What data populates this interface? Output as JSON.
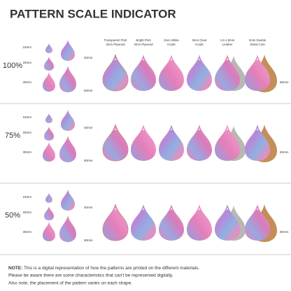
{
  "title": "PATTERN SCALE INDICATOR",
  "materials": [
    "Transparent Print 3mm Plywood",
    "Bright Print 3mm Plywood",
    "3mm White Acrylic",
    "3mm Clear Acrylic",
    "1.6-1.8mm Leather",
    "2mm Double Sided Cork"
  ],
  "rows": [
    {
      "scale": "100%",
      "sizes": [
        "15mm",
        "20mm",
        "30mm",
        "40mm",
        "50mm",
        "60mm"
      ]
    },
    {
      "scale": "75%",
      "sizes": [
        "15mm",
        "20mm",
        "30mm",
        "40mm",
        "50mm",
        "60mm"
      ]
    },
    {
      "scale": "50%",
      "sizes": [
        "15mm",
        "20mm",
        "30mm",
        "40mm",
        "50mm",
        "60mm"
      ]
    }
  ],
  "note": {
    "label": "NOTE:",
    "lines": [
      "This is a digital representation of how the patterns are printed on the different materials.",
      "Please be aware there are some characteristics that can't be represented digitally.",
      "Also note, the placement of the pattern varies on each shape."
    ]
  }
}
